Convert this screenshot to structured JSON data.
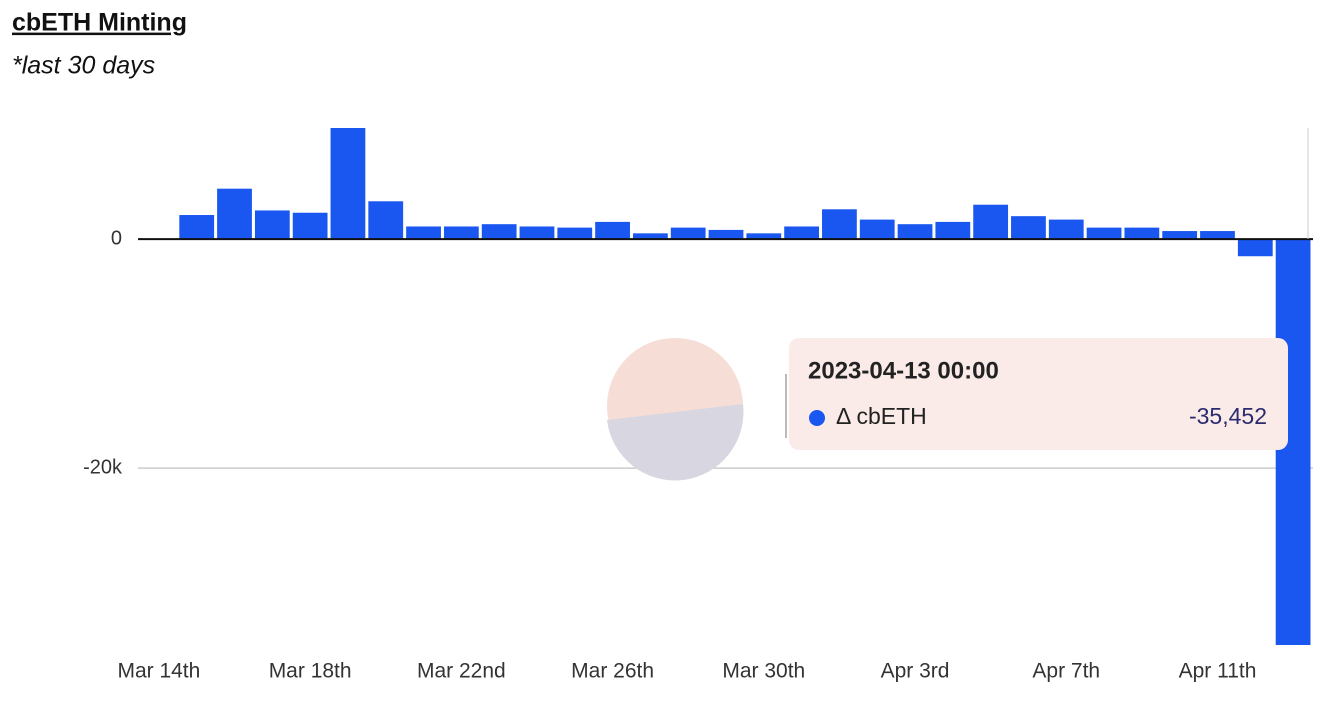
{
  "chart_data": {
    "type": "bar",
    "title": "cbETH Minting",
    "subtitle": "*last 30 days",
    "categories": [
      "Mar 14th",
      null,
      null,
      null,
      "Mar 18th",
      null,
      null,
      null,
      "Mar 22nd",
      null,
      null,
      null,
      "Mar 26th",
      null,
      null,
      null,
      "Mar 30th",
      null,
      null,
      null,
      "Apr 3rd",
      null,
      null,
      null,
      "Apr 7th",
      null,
      null,
      null,
      "Apr 11th",
      null,
      null
    ],
    "series": [
      {
        "name": "Δ cbETH",
        "color": "#1a56f0",
        "values": [
          null,
          2100,
          4400,
          2500,
          2300,
          9700,
          3300,
          1100,
          1100,
          1300,
          1100,
          1000,
          1500,
          500,
          1000,
          800,
          500,
          1100,
          2600,
          1700,
          1300,
          1500,
          3000,
          2000,
          1700,
          1000,
          1000,
          700,
          700,
          -1500,
          -35452
        ]
      }
    ],
    "ylim": [
      -35452,
      9700
    ],
    "yticks": [
      0,
      {
        "value": -20000,
        "label": "-20k"
      }
    ],
    "tooltip": {
      "title": "2023-04-13 00:00",
      "value_label": "-35,452"
    }
  }
}
